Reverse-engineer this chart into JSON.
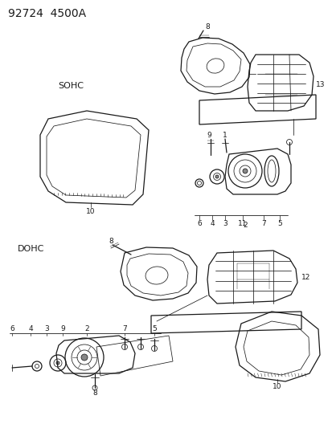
{
  "title": "92724  4500A",
  "bg_color": "#ffffff",
  "line_color": "#1a1a1a",
  "sohc_label": "SOHC",
  "dohc_label": "DOHC",
  "title_fontsize": 10,
  "label_fontsize": 7.5,
  "part_label_fontsize": 6.5,
  "fig_width": 4.14,
  "fig_height": 5.33
}
